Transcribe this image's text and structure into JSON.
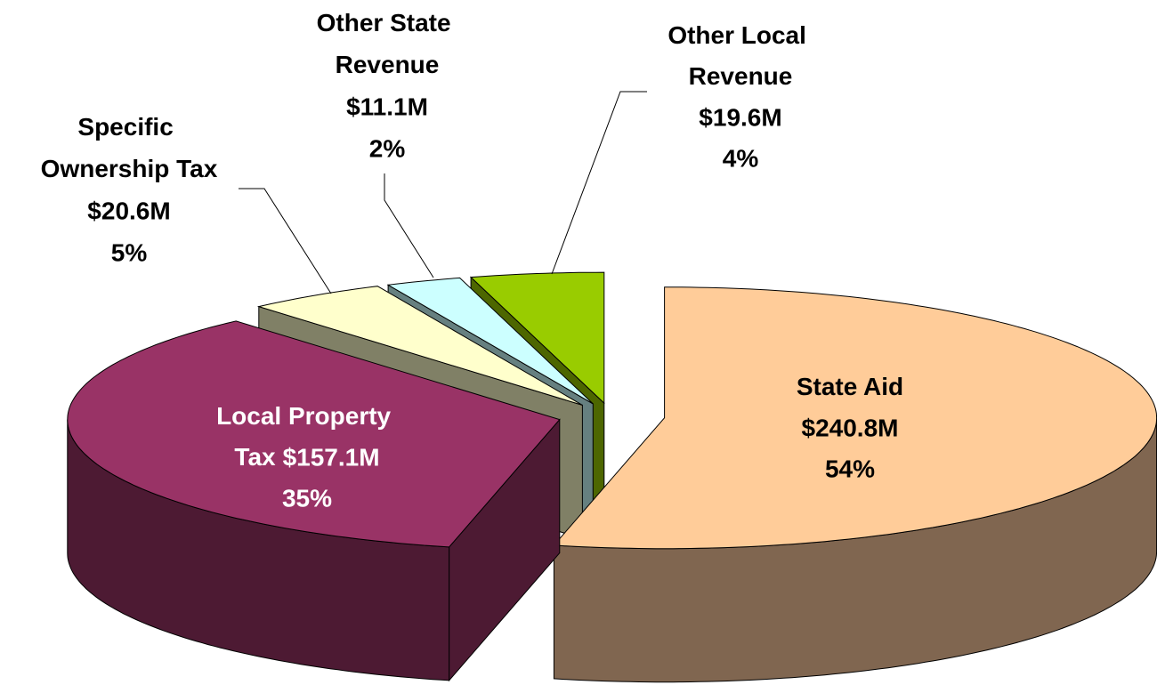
{
  "chart_data": {
    "type": "pie3d",
    "categories": [
      "State Aid",
      "Local Property Tax",
      "Specific Ownership Tax",
      "Other State Revenue",
      "Other Local Revenue"
    ],
    "values": [
      240.8,
      157.1,
      20.6,
      11.1,
      19.6
    ],
    "value_labels": [
      "$240.8M",
      "$157.1M",
      "$20.6M",
      "$11.1M",
      "$19.6M"
    ],
    "percents": [
      54,
      35,
      5,
      2,
      4
    ],
    "percent_labels": [
      "54%",
      "35%",
      "5%",
      "2%",
      "4%"
    ],
    "colors": [
      "#FFCC99",
      "#993366",
      "#FFFFCC",
      "#CCFFFF",
      "#99CC00"
    ],
    "side_colors": [
      "#806650",
      "#4D1A33",
      "#808066",
      "#668080",
      "#4D6600"
    ]
  }
}
